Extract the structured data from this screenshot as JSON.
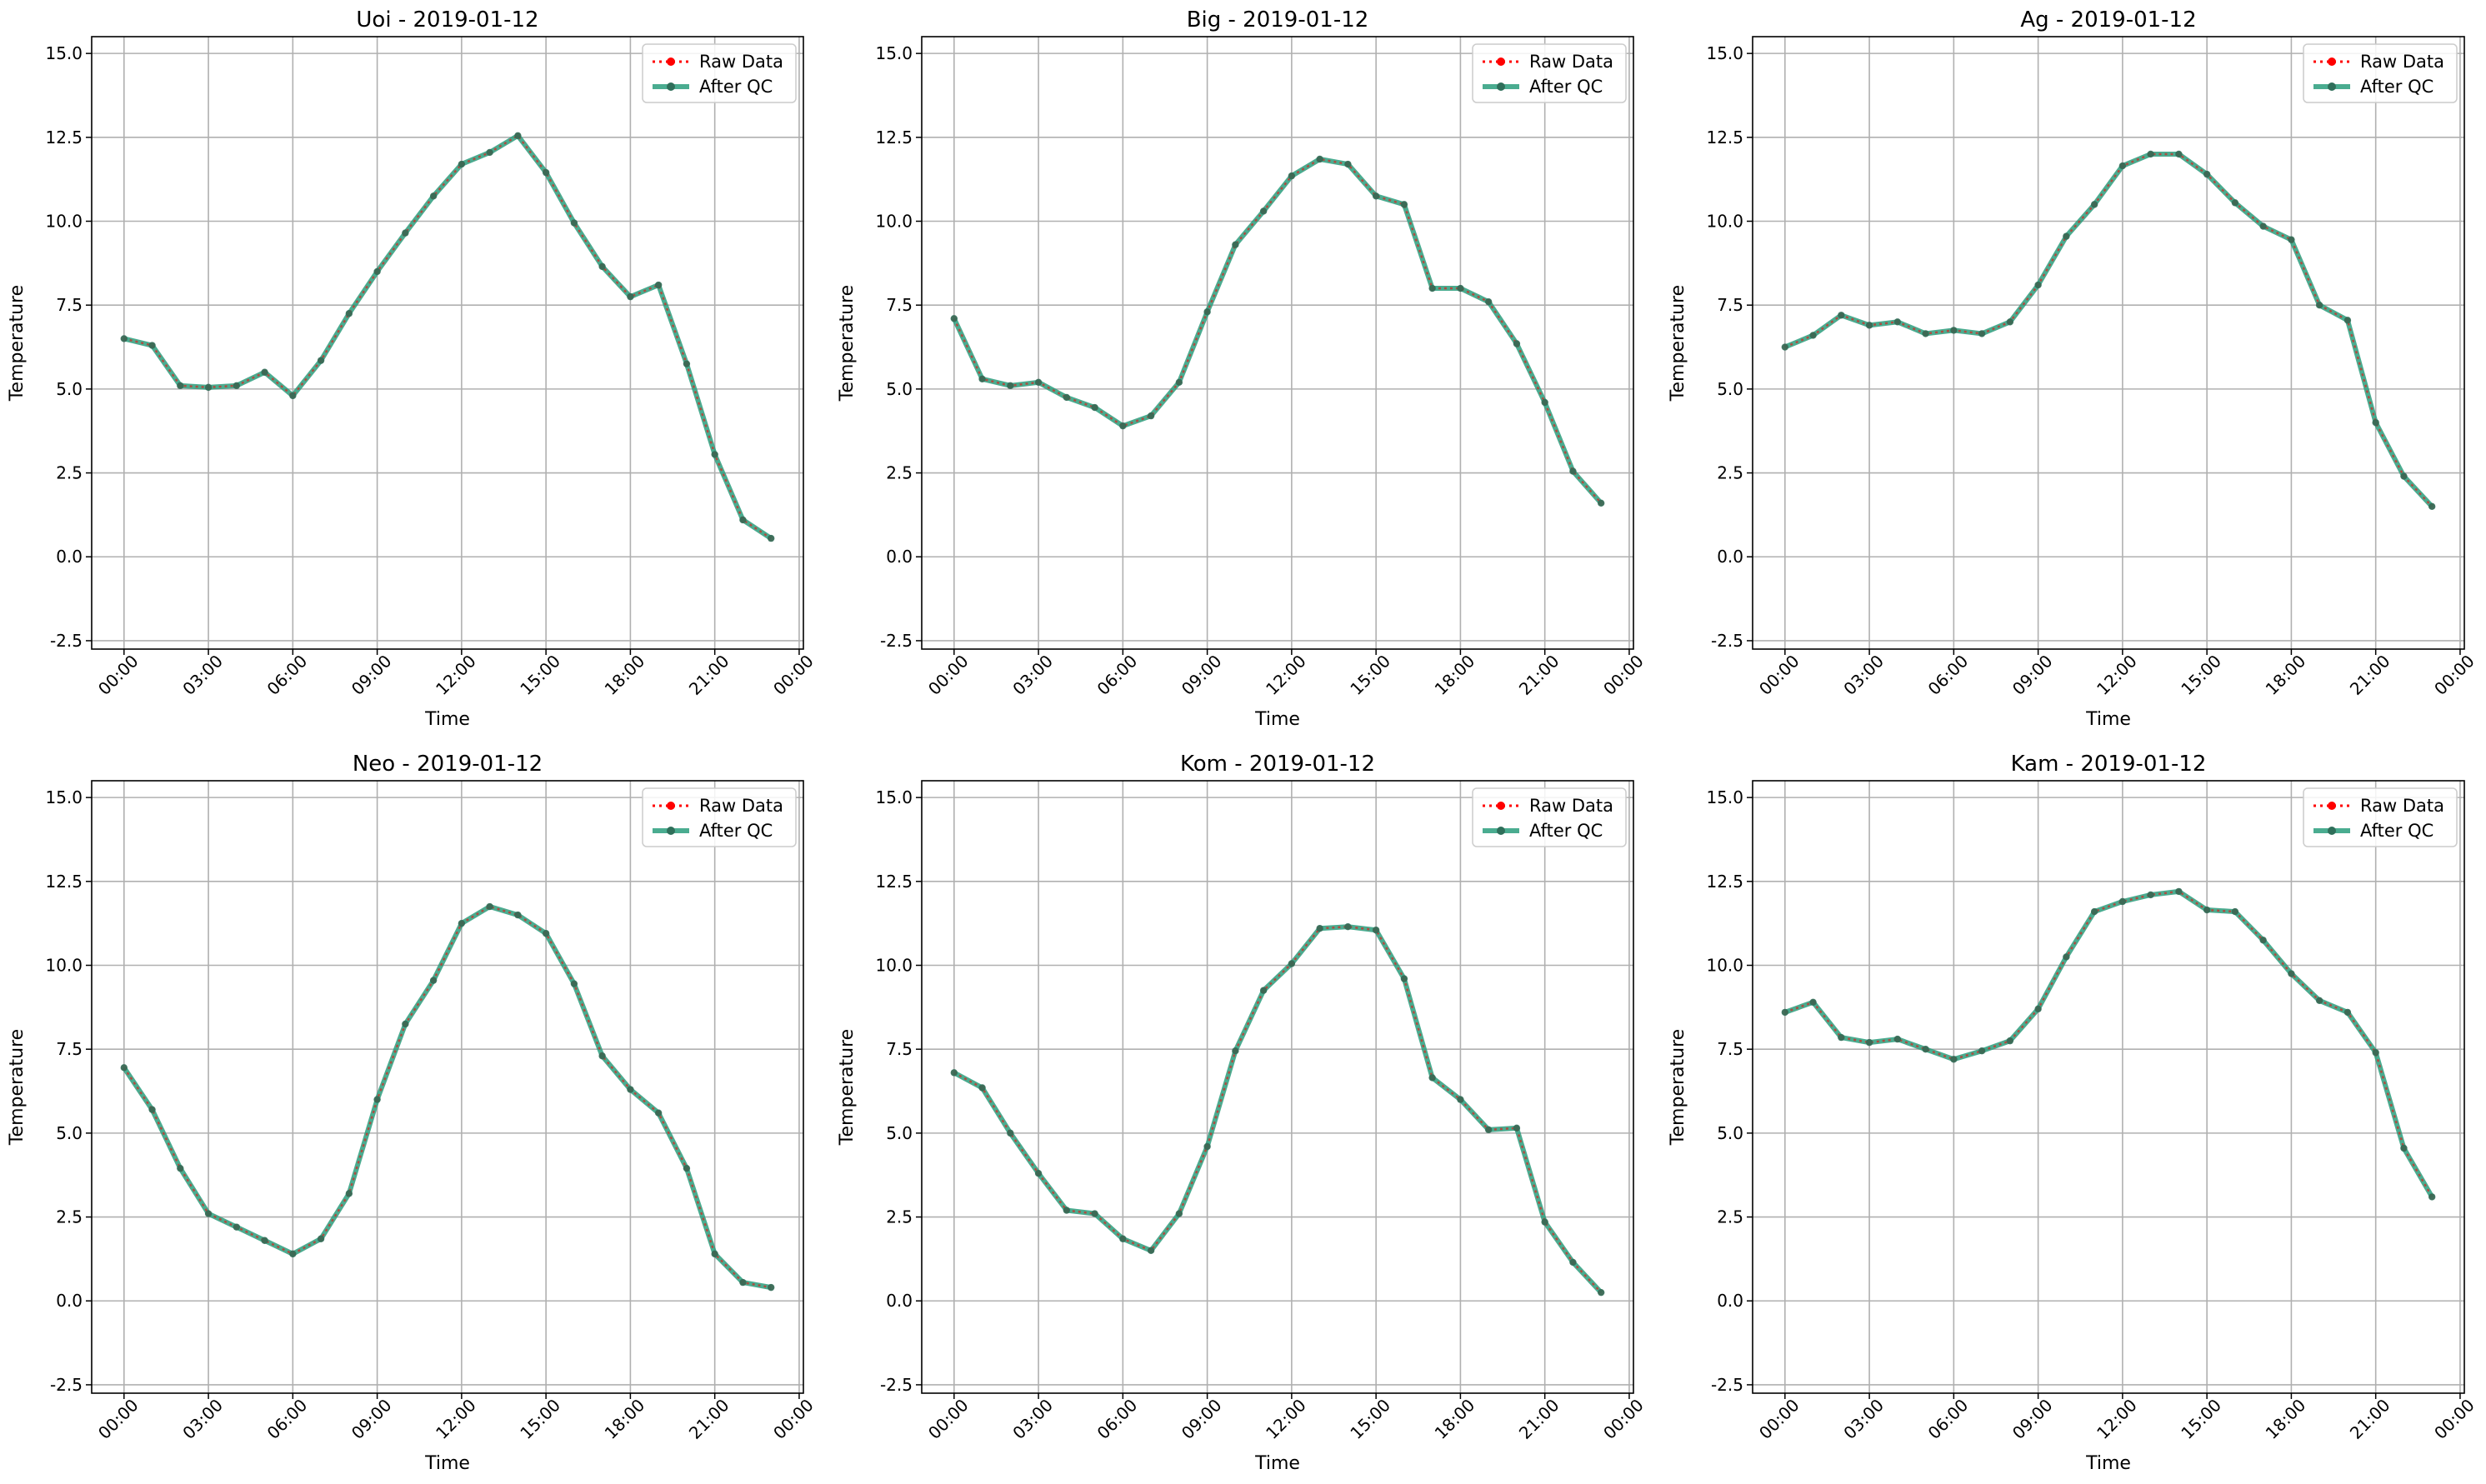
{
  "figure": {
    "colors": {
      "raw": "#ff0000",
      "after_qc": "#2a9d7c",
      "after_qc_marker": "#2f6f5a",
      "grid": "#b0b0b0",
      "frame": "#000000"
    },
    "legend": {
      "raw_label": "Raw Data",
      "qc_label": "After QC",
      "placement": "upper-right"
    }
  },
  "chart_data": [
    {
      "type": "line",
      "title": "Uoi - 2019-01-12",
      "xlabel": "Time",
      "ylabel": "Temperature",
      "xlim_hours": [
        -1.15,
        24.15
      ],
      "ylim": [
        -2.75,
        15.5
      ],
      "x_ticks_hours": [
        0,
        3,
        6,
        9,
        12,
        15,
        18,
        21,
        24
      ],
      "x_tick_labels": [
        "00:00",
        "03:00",
        "06:00",
        "09:00",
        "12:00",
        "15:00",
        "18:00",
        "21:00",
        "00:00"
      ],
      "y_ticks": [
        -2.5,
        0.0,
        2.5,
        5.0,
        7.5,
        10.0,
        12.5,
        15.0
      ],
      "y_tick_labels": [
        "-2.5",
        "0.0",
        "2.5",
        "5.0",
        "7.5",
        "10.0",
        "12.5",
        "15.0"
      ],
      "grid": true,
      "x_hours": [
        0,
        1,
        2,
        3,
        4,
        5,
        6,
        7,
        8,
        9,
        10,
        11,
        12,
        13,
        14,
        15,
        16,
        17,
        18,
        19,
        20,
        21,
        22,
        23
      ],
      "series": [
        {
          "name": "Raw Data",
          "values": [
            6.5,
            6.3,
            5.1,
            5.05,
            5.1,
            5.5,
            4.8,
            5.85,
            7.25,
            8.5,
            9.65,
            10.75,
            11.7,
            12.05,
            12.55,
            11.45,
            9.95,
            8.65,
            7.75,
            8.1,
            5.75,
            3.05,
            1.1,
            0.55
          ]
        },
        {
          "name": "After QC",
          "values": [
            6.5,
            6.3,
            5.1,
            5.05,
            5.1,
            5.5,
            4.8,
            5.85,
            7.25,
            8.5,
            9.65,
            10.75,
            11.7,
            12.05,
            12.55,
            11.45,
            9.95,
            8.65,
            7.75,
            8.1,
            5.75,
            3.05,
            1.1,
            0.55
          ]
        }
      ]
    },
    {
      "type": "line",
      "title": "Big - 2019-01-12",
      "xlabel": "Time",
      "ylabel": "Temperature",
      "xlim_hours": [
        -1.15,
        24.15
      ],
      "ylim": [
        -2.75,
        15.5
      ],
      "x_ticks_hours": [
        0,
        3,
        6,
        9,
        12,
        15,
        18,
        21,
        24
      ],
      "x_tick_labels": [
        "00:00",
        "03:00",
        "06:00",
        "09:00",
        "12:00",
        "15:00",
        "18:00",
        "21:00",
        "00:00"
      ],
      "y_ticks": [
        -2.5,
        0.0,
        2.5,
        5.0,
        7.5,
        10.0,
        12.5,
        15.0
      ],
      "y_tick_labels": [
        "-2.5",
        "0.0",
        "2.5",
        "5.0",
        "7.5",
        "10.0",
        "12.5",
        "15.0"
      ],
      "grid": true,
      "x_hours": [
        0,
        1,
        2,
        3,
        4,
        5,
        6,
        7,
        8,
        9,
        10,
        11,
        12,
        13,
        14,
        15,
        16,
        17,
        18,
        19,
        20,
        21,
        22,
        23
      ],
      "series": [
        {
          "name": "Raw Data",
          "values": [
            7.1,
            5.3,
            5.1,
            5.2,
            4.75,
            4.45,
            3.9,
            4.2,
            5.2,
            7.3,
            9.3,
            10.3,
            11.35,
            11.85,
            11.7,
            10.75,
            10.5,
            8.0,
            8.0,
            7.6,
            6.35,
            4.6,
            2.55,
            1.6
          ]
        },
        {
          "name": "After QC",
          "values": [
            7.1,
            5.3,
            5.1,
            5.2,
            4.75,
            4.45,
            3.9,
            4.2,
            5.2,
            7.3,
            9.3,
            10.3,
            11.35,
            11.85,
            11.7,
            10.75,
            10.5,
            8.0,
            8.0,
            7.6,
            6.35,
            4.6,
            2.55,
            1.6
          ]
        }
      ]
    },
    {
      "type": "line",
      "title": "Ag - 2019-01-12",
      "xlabel": "Time",
      "ylabel": "Temperature",
      "xlim_hours": [
        -1.15,
        24.15
      ],
      "ylim": [
        -2.75,
        15.5
      ],
      "x_ticks_hours": [
        0,
        3,
        6,
        9,
        12,
        15,
        18,
        21,
        24
      ],
      "x_tick_labels": [
        "00:00",
        "03:00",
        "06:00",
        "09:00",
        "12:00",
        "15:00",
        "18:00",
        "21:00",
        "00:00"
      ],
      "y_ticks": [
        -2.5,
        0.0,
        2.5,
        5.0,
        7.5,
        10.0,
        12.5,
        15.0
      ],
      "y_tick_labels": [
        "-2.5",
        "0.0",
        "2.5",
        "5.0",
        "7.5",
        "10.0",
        "12.5",
        "15.0"
      ],
      "grid": true,
      "x_hours": [
        0,
        1,
        2,
        3,
        4,
        5,
        6,
        7,
        8,
        9,
        10,
        11,
        12,
        13,
        14,
        15,
        16,
        17,
        18,
        19,
        20,
        21,
        22,
        23
      ],
      "series": [
        {
          "name": "Raw Data",
          "values": [
            6.25,
            6.6,
            7.2,
            6.9,
            7.0,
            6.65,
            6.75,
            6.65,
            7.0,
            8.1,
            9.55,
            10.5,
            11.65,
            12.0,
            12.0,
            11.4,
            10.55,
            9.85,
            9.45,
            7.5,
            7.05,
            4.0,
            2.4,
            1.5
          ]
        },
        {
          "name": "After QC",
          "values": [
            6.25,
            6.6,
            7.2,
            6.9,
            7.0,
            6.65,
            6.75,
            6.65,
            7.0,
            8.1,
            9.55,
            10.5,
            11.65,
            12.0,
            12.0,
            11.4,
            10.55,
            9.85,
            9.45,
            7.5,
            7.05,
            4.0,
            2.4,
            1.5
          ]
        }
      ]
    },
    {
      "type": "line",
      "title": "Neo - 2019-01-12",
      "xlabel": "Time",
      "ylabel": "Temperature",
      "xlim_hours": [
        -1.15,
        24.15
      ],
      "ylim": [
        -2.75,
        15.5
      ],
      "x_ticks_hours": [
        0,
        3,
        6,
        9,
        12,
        15,
        18,
        21,
        24
      ],
      "x_tick_labels": [
        "00:00",
        "03:00",
        "06:00",
        "09:00",
        "12:00",
        "15:00",
        "18:00",
        "21:00",
        "00:00"
      ],
      "y_ticks": [
        -2.5,
        0.0,
        2.5,
        5.0,
        7.5,
        10.0,
        12.5,
        15.0
      ],
      "y_tick_labels": [
        "-2.5",
        "0.0",
        "2.5",
        "5.0",
        "7.5",
        "10.0",
        "12.5",
        "15.0"
      ],
      "grid": true,
      "x_hours": [
        0,
        1,
        2,
        3,
        4,
        5,
        6,
        7,
        8,
        9,
        10,
        11,
        12,
        13,
        14,
        15,
        16,
        17,
        18,
        19,
        20,
        21,
        22,
        23
      ],
      "series": [
        {
          "name": "Raw Data",
          "values": [
            6.95,
            5.7,
            3.95,
            2.6,
            2.2,
            1.8,
            1.4,
            1.85,
            3.2,
            6.0,
            8.25,
            9.55,
            11.25,
            11.75,
            11.5,
            10.95,
            9.45,
            7.3,
            6.3,
            5.6,
            3.95,
            1.4,
            0.55,
            0.4
          ]
        },
        {
          "name": "After QC",
          "values": [
            6.95,
            5.7,
            3.95,
            2.6,
            2.2,
            1.8,
            1.4,
            1.85,
            3.2,
            6.0,
            8.25,
            9.55,
            11.25,
            11.75,
            11.5,
            10.95,
            9.45,
            7.3,
            6.3,
            5.6,
            3.95,
            1.4,
            0.55,
            0.4
          ]
        }
      ]
    },
    {
      "type": "line",
      "title": "Kom - 2019-01-12",
      "xlabel": "Time",
      "ylabel": "Temperature",
      "xlim_hours": [
        -1.15,
        24.15
      ],
      "ylim": [
        -2.75,
        15.5
      ],
      "x_ticks_hours": [
        0,
        3,
        6,
        9,
        12,
        15,
        18,
        21,
        24
      ],
      "x_tick_labels": [
        "00:00",
        "03:00",
        "06:00",
        "09:00",
        "12:00",
        "15:00",
        "18:00",
        "21:00",
        "00:00"
      ],
      "y_ticks": [
        -2.5,
        0.0,
        2.5,
        5.0,
        7.5,
        10.0,
        12.5,
        15.0
      ],
      "y_tick_labels": [
        "-2.5",
        "0.0",
        "2.5",
        "5.0",
        "7.5",
        "10.0",
        "12.5",
        "15.0"
      ],
      "grid": true,
      "x_hours": [
        0,
        1,
        2,
        3,
        4,
        5,
        6,
        7,
        8,
        9,
        10,
        11,
        12,
        13,
        14,
        15,
        16,
        17,
        18,
        19,
        20,
        21,
        22,
        23
      ],
      "series": [
        {
          "name": "Raw Data",
          "values": [
            6.8,
            6.35,
            5.0,
            3.8,
            2.7,
            2.6,
            1.85,
            1.5,
            2.6,
            4.6,
            7.45,
            9.25,
            10.05,
            11.1,
            11.15,
            11.05,
            9.6,
            6.65,
            6.0,
            5.1,
            5.15,
            2.35,
            1.15,
            0.25
          ]
        },
        {
          "name": "After QC",
          "values": [
            6.8,
            6.35,
            5.0,
            3.8,
            2.7,
            2.6,
            1.85,
            1.5,
            2.6,
            4.6,
            7.45,
            9.25,
            10.05,
            11.1,
            11.15,
            11.05,
            9.6,
            6.65,
            6.0,
            5.1,
            5.15,
            2.35,
            1.15,
            0.25
          ]
        }
      ]
    },
    {
      "type": "line",
      "title": "Kam - 2019-01-12",
      "xlabel": "Time",
      "ylabel": "Temperature",
      "xlim_hours": [
        -1.15,
        24.15
      ],
      "ylim": [
        -2.75,
        15.5
      ],
      "x_ticks_hours": [
        0,
        3,
        6,
        9,
        12,
        15,
        18,
        21,
        24
      ],
      "x_tick_labels": [
        "00:00",
        "03:00",
        "06:00",
        "09:00",
        "12:00",
        "15:00",
        "18:00",
        "21:00",
        "00:00"
      ],
      "y_ticks": [
        -2.5,
        0.0,
        2.5,
        5.0,
        7.5,
        10.0,
        12.5,
        15.0
      ],
      "y_tick_labels": [
        "-2.5",
        "0.0",
        "2.5",
        "5.0",
        "7.5",
        "10.0",
        "12.5",
        "15.0"
      ],
      "grid": true,
      "x_hours": [
        0,
        1,
        2,
        3,
        4,
        5,
        6,
        7,
        8,
        9,
        10,
        11,
        12,
        13,
        14,
        15,
        16,
        17,
        18,
        19,
        20,
        21,
        22,
        23
      ],
      "series": [
        {
          "name": "Raw Data",
          "values": [
            8.6,
            8.9,
            7.85,
            7.7,
            7.8,
            7.5,
            7.2,
            7.45,
            7.75,
            8.7,
            10.25,
            11.6,
            11.9,
            12.1,
            12.2,
            11.65,
            11.6,
            10.75,
            9.75,
            8.95,
            8.6,
            7.4,
            4.55,
            3.1
          ]
        },
        {
          "name": "After QC",
          "values": [
            8.6,
            8.9,
            7.85,
            7.7,
            7.8,
            7.5,
            7.2,
            7.45,
            7.75,
            8.7,
            10.25,
            11.6,
            11.9,
            12.1,
            12.2,
            11.65,
            11.6,
            10.75,
            9.75,
            8.95,
            8.6,
            7.4,
            4.55,
            3.1
          ]
        }
      ]
    }
  ]
}
